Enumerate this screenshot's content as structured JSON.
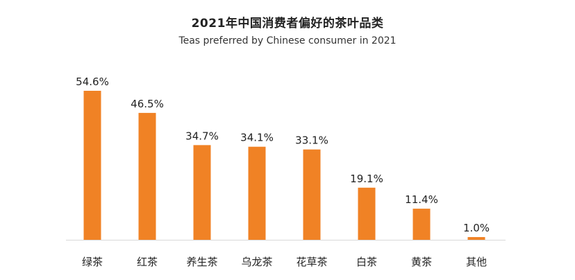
{
  "colors": {
    "bar": "#F08225",
    "axis": "#d9d9d9",
    "text": "#222222"
  },
  "chart_data": {
    "type": "bar",
    "title": "2021年中国消费者偏好的茶叶品类",
    "subtitle": "Teas preferred by Chinese consumer in 2021",
    "categories": [
      "绿茶",
      "红茶",
      "养生茶",
      "乌龙茶",
      "花草茶",
      "白茶",
      "黄茶",
      "其他"
    ],
    "values": [
      54.6,
      46.5,
      34.7,
      34.1,
      33.1,
      19.1,
      11.4,
      1.0
    ],
    "value_labels": [
      "54.6%",
      "46.5%",
      "34.7%",
      "34.1%",
      "33.1%",
      "19.1%",
      "11.4%",
      "1.0%"
    ],
    "xlabel": "",
    "ylabel": "",
    "ylim": [
      0,
      54.6
    ],
    "grid": false,
    "legend": "none"
  }
}
